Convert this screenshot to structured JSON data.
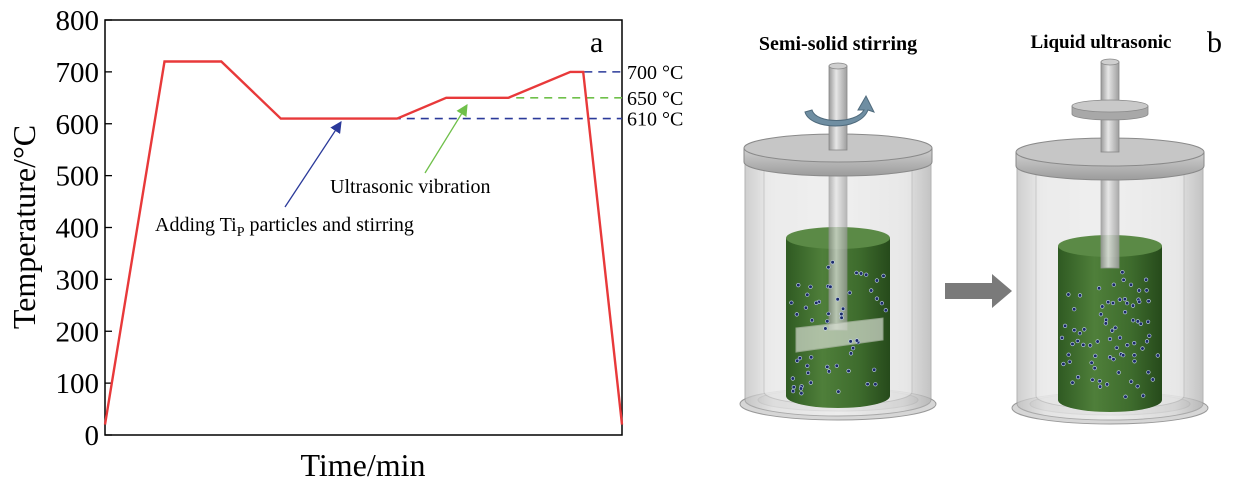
{
  "panel_a": {
    "label": "a",
    "xlabel": "Time/min",
    "ylabel": "Temperature/°C",
    "annotations": {
      "adding_prefix": "Adding Ti",
      "adding_sub": "P",
      "adding_suffix": " particles and stirring",
      "ultrasonic": "Ultrasonic vibration"
    },
    "reference_lines": [
      {
        "label": "700 °C",
        "value": 700,
        "color": "#2b3a9a"
      },
      {
        "label": "650 °C",
        "value": 650,
        "color": "#6fc04a"
      },
      {
        "label": "610 °C",
        "value": 610,
        "color": "#2b3a9a"
      }
    ]
  },
  "panel_b": {
    "label": "b",
    "left_title": "Semi-solid stirring",
    "right_title": "Liquid ultrasonic"
  },
  "chart_data": {
    "type": "line",
    "title": "",
    "xlabel": "Time/min",
    "ylabel": "Temperature/°C",
    "ylim": [
      0,
      800
    ],
    "xlim": [
      0,
      100
    ],
    "yticks": [
      0,
      100,
      200,
      300,
      400,
      500,
      600,
      700,
      800
    ],
    "series": [
      {
        "color": "#e8393a",
        "x": [
          0,
          11.5,
          22.5,
          34,
          56.5,
          66,
          78,
          90,
          92.5,
          100
        ],
        "y": [
          20,
          720,
          720,
          610,
          610,
          650,
          650,
          700,
          700,
          20
        ]
      }
    ]
  }
}
